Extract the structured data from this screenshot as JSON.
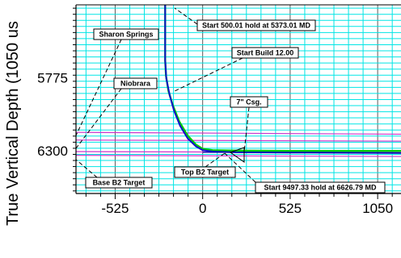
{
  "chart_data": {
    "type": "line",
    "ylabel": "True Vertical Depth (1050 us",
    "x_ticks": [
      -525,
      0,
      525,
      1050
    ],
    "y_ticks": [
      5775,
      6300
    ],
    "xlim": [
      -760,
      1190
    ],
    "ylim": [
      6606,
      5251
    ],
    "grid": true,
    "colors": {
      "grid_minor": "#00e5e5",
      "grid_major": "#5a5a5a",
      "plan": "#00cc00",
      "actual": "#1010cc",
      "formation": "#cc33cc",
      "target_line": "#0000aa"
    },
    "series": [
      {
        "x": [
          -225,
          -225,
          -220,
          -205,
          -180,
          -140,
          -90,
          -40,
          0,
          60,
          200,
          525,
          1190
        ],
        "y": [
          5251,
          5650,
          5760,
          5870,
          5970,
          6090,
          6190,
          6255,
          6285,
          6295,
          6298,
          6300,
          6300
        ]
      },
      {
        "x": [
          -225,
          -225,
          -218,
          -198,
          -172,
          -135,
          -90,
          -40,
          0,
          60,
          200,
          525,
          1190
        ],
        "y": [
          5251,
          5650,
          5780,
          5900,
          6010,
          6120,
          6210,
          6268,
          6295,
          6305,
          6310,
          6312,
          6315
        ]
      }
    ],
    "formations": [
      {
        "y0": 6167,
        "y1": 6180
      },
      {
        "y0": 6222,
        "y1": 6230
      },
      {
        "y0": 6305,
        "y1": 6312
      },
      {
        "y0": 6332,
        "y1": 6340
      }
    ],
    "annotations": [
      {
        "text": "Sharon Springs"
      },
      {
        "text": "Start 500.01 hold at 5373.01 MD"
      },
      {
        "text": "Start Build 12.00"
      },
      {
        "text": "Niobrara"
      },
      {
        "text": "7\" Csg."
      },
      {
        "text": "Top B2 Target"
      },
      {
        "text": "Base B2 Target"
      },
      {
        "text": "Start 9497.33 hold at 6626.79 MD"
      }
    ]
  }
}
